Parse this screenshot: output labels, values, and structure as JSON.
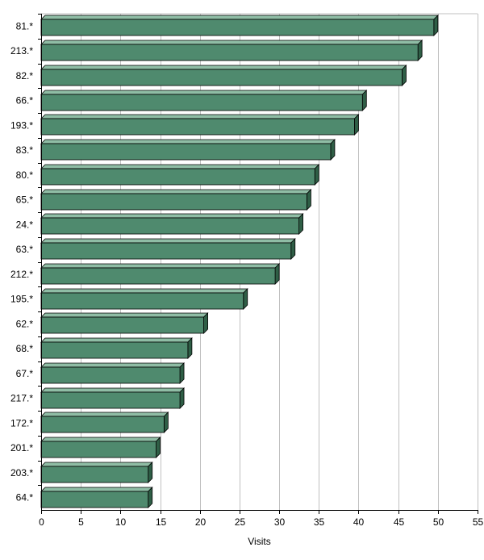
{
  "chart_data": {
    "type": "bar",
    "orientation": "horizontal",
    "categories": [
      "81.*",
      "213.*",
      "82.*",
      "66.*",
      "193.*",
      "83.*",
      "80.*",
      "65.*",
      "24.*",
      "63.*",
      "212.*",
      "195.*",
      "62.*",
      "68.*",
      "67.*",
      "217.*",
      "172.*",
      "201.*",
      "203.*",
      "64.*"
    ],
    "values": [
      50,
      48,
      46,
      41,
      40,
      37,
      35,
      34,
      33,
      32,
      30,
      26,
      21,
      19,
      18,
      18,
      16,
      15,
      14,
      14
    ],
    "xlabel": "Visits",
    "xlim": [
      0,
      55
    ],
    "xticks": [
      0,
      5,
      10,
      15,
      20,
      25,
      30,
      35,
      40,
      45,
      50,
      55
    ],
    "grid": true,
    "bar_color": "#4f8a6e",
    "bar_top_color": "#8fbda5",
    "bar_side_color": "#2f5e46",
    "grid_color": "#c0c0c0"
  }
}
